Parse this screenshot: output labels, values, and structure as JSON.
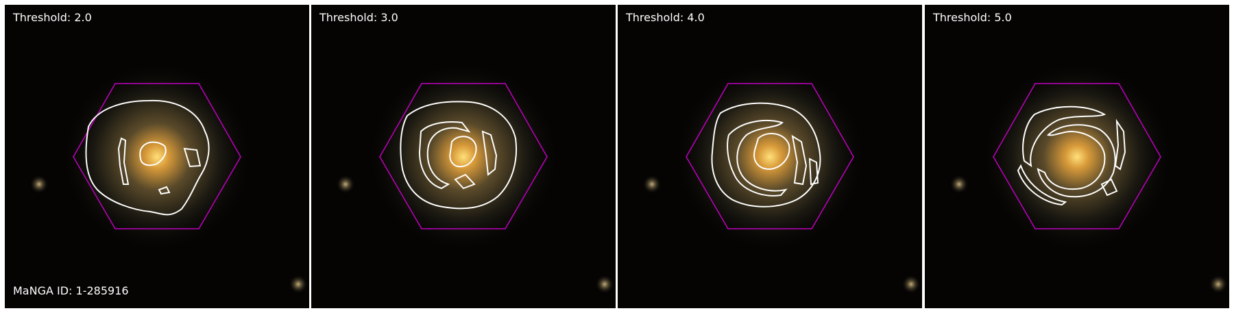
{
  "panels": [
    {
      "label": "Threshold: 2.0"
    },
    {
      "label": "Threshold: 3.0"
    },
    {
      "label": "Threshold: 4.0"
    },
    {
      "label": "Threshold: 5.0"
    }
  ],
  "galaxy_id_label": "MaNGA ID: 1-285916",
  "colors": {
    "hexagon": "#c000c0",
    "contour": "#ffffff",
    "sky": "#050403",
    "galaxy_core": "#ffd070"
  }
}
